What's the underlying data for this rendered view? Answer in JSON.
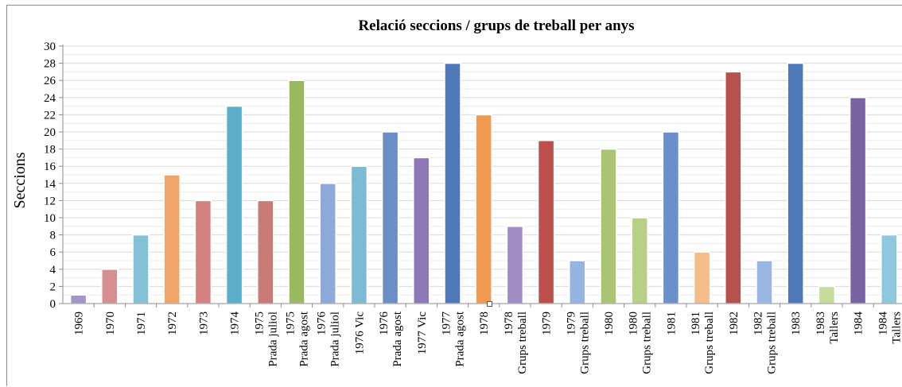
{
  "chart_data": {
    "type": "bar",
    "title": "Relació seccions / grups de treball per anys",
    "ylabel": "Seccions",
    "xlabel": "",
    "ylim": [
      0,
      30
    ],
    "yticks": [
      "0",
      "2",
      "4",
      "6",
      "8",
      "10",
      "12",
      "14",
      "16",
      "18",
      "20",
      "22",
      "24",
      "26",
      "28",
      "30"
    ],
    "grid": true,
    "categories": [
      [
        "1969"
      ],
      [
        "1970"
      ],
      [
        "1971"
      ],
      [
        "1972"
      ],
      [
        "1973"
      ],
      [
        "1974"
      ],
      [
        "1975",
        "Prada juliol"
      ],
      [
        "1975",
        "Prada agost"
      ],
      [
        "1976",
        "Prada juliol"
      ],
      [
        "1976 Vic"
      ],
      [
        "1976",
        "Prada agost"
      ],
      [
        "1977 Vic"
      ],
      [
        "1977",
        "Prada agost"
      ],
      [
        "1978"
      ],
      [
        "1978",
        "Grups treball"
      ],
      [
        "1979"
      ],
      [
        "1979",
        "Grups treball"
      ],
      [
        "1980"
      ],
      [
        "1980",
        "Grups treball"
      ],
      [
        "1981"
      ],
      [
        "1981",
        "Grups treball"
      ],
      [
        "1982"
      ],
      [
        "1982",
        "Grups treball"
      ],
      [
        "1983"
      ],
      [
        "1983",
        "Tallers"
      ],
      [
        "1984"
      ],
      [
        "1984",
        "Tallers"
      ]
    ],
    "values": [
      1,
      4,
      8,
      15,
      12,
      23,
      12,
      26,
      14,
      16,
      20,
      17,
      28,
      22,
      9,
      19,
      5,
      18,
      10,
      20,
      6,
      27,
      5,
      28,
      2,
      24,
      8
    ],
    "colors": [
      "#a395c7",
      "#d4908e",
      "#83c2d6",
      "#f0a566",
      "#d4827f",
      "#5aaecb",
      "#c97a76",
      "#9ab860",
      "#8ba9d9",
      "#7bbcd4",
      "#6c8ec6",
      "#8b79b8",
      "#4f78b8",
      "#f09a50",
      "#a08cc4",
      "#bd4f4b",
      "#96b4e0",
      "#a9c472",
      "#b8cf86",
      "#6a8fcb",
      "#f5bd8a",
      "#b5524e",
      "#98b6e2",
      "#4e7ab9",
      "#c5dc9a",
      "#7a63a4",
      "#8dc8dc"
    ]
  }
}
